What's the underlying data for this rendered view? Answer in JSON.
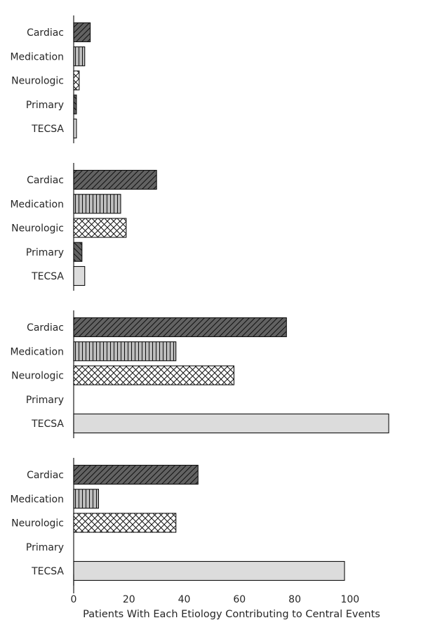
{
  "chart_data": {
    "type": "bar",
    "orientation": "horizontal",
    "categories": [
      "Cardiac",
      "Medication",
      "Neurologic",
      "Primary",
      "TECSA"
    ],
    "category_styles": [
      {
        "fill": "#626262",
        "hatch": "diagonal"
      },
      {
        "fill": "#bdbdbd",
        "hatch": "vertical"
      },
      {
        "fill": "#ffffff",
        "hatch": "crosshatch"
      },
      {
        "fill": "#626262",
        "hatch": "backslash"
      },
      {
        "fill": "#dcdcdc",
        "hatch": "none"
      }
    ],
    "panels": [
      {
        "values": [
          6,
          4,
          2,
          1,
          1
        ]
      },
      {
        "values": [
          30,
          17,
          19,
          3,
          4
        ]
      },
      {
        "values": [
          77,
          37,
          58,
          0,
          114
        ]
      },
      {
        "values": [
          45,
          9,
          37,
          0,
          98
        ]
      }
    ],
    "xlim": [
      0,
      114
    ],
    "xticks": [
      0,
      20,
      40,
      60,
      80,
      100
    ],
    "xlabel": "Patients With Each Etiology Contributing to Central Events",
    "grid": false,
    "shared_x_axis": true
  }
}
